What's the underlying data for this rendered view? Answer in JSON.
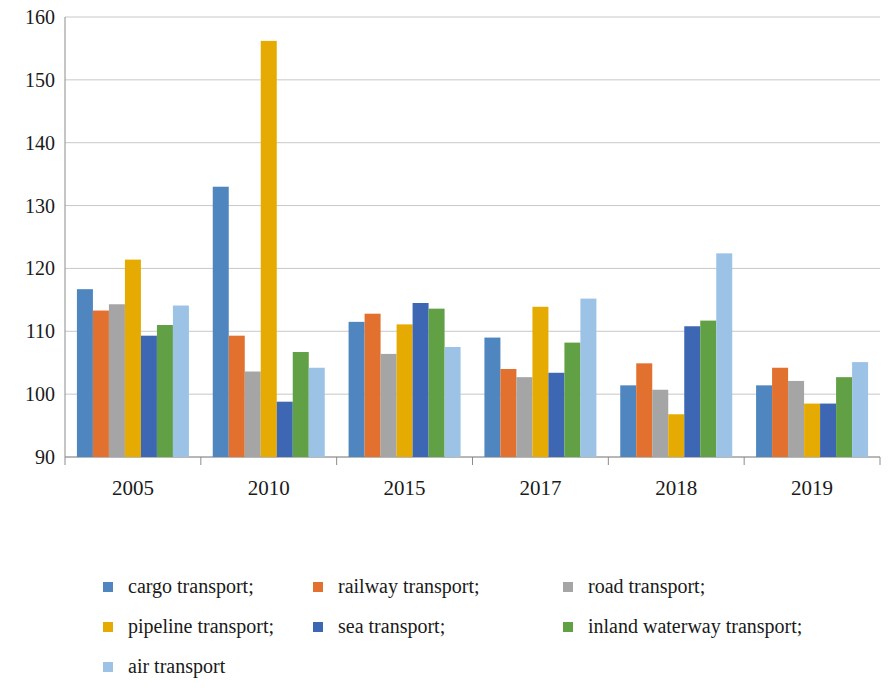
{
  "chart_data": {
    "type": "bar",
    "categories": [
      "2005",
      "2010",
      "2015",
      "2017",
      "2018",
      "2019"
    ],
    "series": [
      {
        "name": "cargo transport;",
        "color": "#4f86c0",
        "values": [
          116.7,
          133.0,
          111.5,
          109.0,
          101.4,
          101.4
        ]
      },
      {
        "name": "railway transport;",
        "color": "#e2702e",
        "values": [
          113.3,
          109.3,
          112.8,
          104.0,
          104.9,
          104.2
        ]
      },
      {
        "name": "road transport;",
        "color": "#a5a5a5",
        "values": [
          114.3,
          103.6,
          106.4,
          102.7,
          100.7,
          102.1
        ]
      },
      {
        "name": "pipeline transport;",
        "color": "#e6ab02",
        "values": [
          121.4,
          156.2,
          111.1,
          113.9,
          96.8,
          98.5
        ]
      },
      {
        "name": "sea transport;",
        "color": "#3d67b3",
        "values": [
          109.3,
          98.8,
          114.5,
          103.4,
          110.8,
          98.5
        ]
      },
      {
        "name": "inland waterway transport;",
        "color": "#61a045",
        "values": [
          111.0,
          106.7,
          113.6,
          108.2,
          111.7,
          102.7
        ]
      },
      {
        "name": "air transport",
        "color": "#9cc3e6",
        "values": [
          114.1,
          104.2,
          107.5,
          115.2,
          122.4,
          105.1
        ]
      }
    ],
    "ylim": [
      90,
      160
    ],
    "yticks": [
      90,
      100,
      110,
      120,
      130,
      140,
      150,
      160
    ],
    "grid": true,
    "legend": "bottom"
  }
}
